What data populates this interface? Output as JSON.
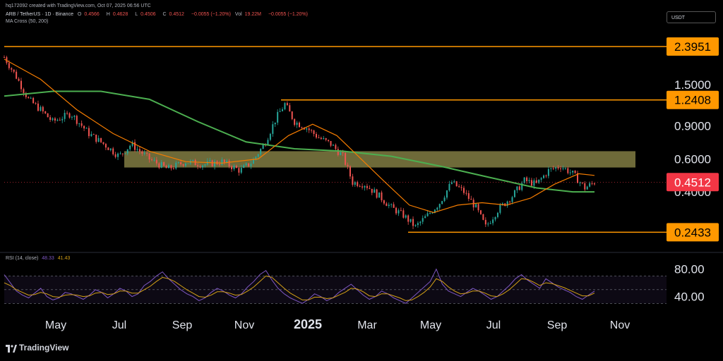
{
  "header": {
    "created": "hq172092 created with TradingView.com, Oct 07, 2025 06:56 UTC",
    "symbol": "ARB / TetherUS · 1D · Binance",
    "o_label": "O",
    "o_value": "0.4566",
    "h_label": "H",
    "h_value": "0.4628",
    "l_label": "L",
    "l_value": "0.4506",
    "c_label": "C",
    "c_value": "0.4512",
    "change": "−0.0055 (−1.20%)",
    "vol_label": "Vol",
    "vol_value": "19.22M",
    "vol_change": "−0.0055 (−1.20%)",
    "ma": "MA Cross (50, 200)"
  },
  "currency_button": "USDT",
  "rsi": {
    "label": "RSI (14, close)",
    "value1": "48.33",
    "value2": "41.43"
  },
  "brand": "TradingView",
  "colors": {
    "up": "#26a69a",
    "down": "#ef5350",
    "ma_fast": "#f57c00",
    "ma_slow": "#4caf50",
    "level": "#ff9800",
    "zone": "#c9c168",
    "rsi": "#7e57c2",
    "rsi_ma": "#d4a017",
    "price_tag": "#f23645"
  },
  "chart_data": [
    {
      "type": "candlestick",
      "title": "ARB / TetherUS · 1D · Binance",
      "y_scale": "log",
      "ylim": [
        0.2,
        3.0
      ],
      "x_ticks": [
        "May",
        "Jul",
        "Sep",
        "Nov",
        "2025",
        "Mar",
        "May",
        "Jul",
        "Sep",
        "Nov"
      ],
      "y_ticks": [
        "1.5000",
        "0.9000",
        "0.6000",
        "0.4000"
      ],
      "levels": [
        {
          "value": "2.3951"
        },
        {
          "value": "1.2408"
        },
        {
          "value": "0.2433"
        }
      ],
      "last_price": "0.4512",
      "zone": {
        "low": 0.54,
        "high": 0.66
      },
      "close_series": [
        {
          "t": 0,
          "v": 2.1
        },
        {
          "t": 10,
          "v": 1.65
        },
        {
          "t": 20,
          "v": 1.25
        },
        {
          "t": 30,
          "v": 1.1
        },
        {
          "t": 40,
          "v": 0.95
        },
        {
          "t": 55,
          "v": 1.05
        },
        {
          "t": 70,
          "v": 0.82
        },
        {
          "t": 85,
          "v": 0.7
        },
        {
          "t": 95,
          "v": 0.62
        },
        {
          "t": 105,
          "v": 0.72
        },
        {
          "t": 120,
          "v": 0.6
        },
        {
          "t": 135,
          "v": 0.53
        },
        {
          "t": 150,
          "v": 0.58
        },
        {
          "t": 165,
          "v": 0.56
        },
        {
          "t": 180,
          "v": 0.58
        },
        {
          "t": 195,
          "v": 0.52
        },
        {
          "t": 205,
          "v": 0.58
        },
        {
          "t": 215,
          "v": 0.72
        },
        {
          "t": 225,
          "v": 1.0
        },
        {
          "t": 232,
          "v": 1.18
        },
        {
          "t": 240,
          "v": 0.95
        },
        {
          "t": 250,
          "v": 0.88
        },
        {
          "t": 260,
          "v": 0.78
        },
        {
          "t": 270,
          "v": 0.72
        },
        {
          "t": 280,
          "v": 0.62
        },
        {
          "t": 288,
          "v": 0.45
        },
        {
          "t": 298,
          "v": 0.44
        },
        {
          "t": 310,
          "v": 0.38
        },
        {
          "t": 320,
          "v": 0.33
        },
        {
          "t": 330,
          "v": 0.3
        },
        {
          "t": 340,
          "v": 0.26
        },
        {
          "t": 350,
          "v": 0.3
        },
        {
          "t": 360,
          "v": 0.35
        },
        {
          "t": 370,
          "v": 0.45
        },
        {
          "t": 380,
          "v": 0.4
        },
        {
          "t": 390,
          "v": 0.33
        },
        {
          "t": 398,
          "v": 0.26
        },
        {
          "t": 408,
          "v": 0.32
        },
        {
          "t": 420,
          "v": 0.38
        },
        {
          "t": 430,
          "v": 0.46
        },
        {
          "t": 440,
          "v": 0.44
        },
        {
          "t": 450,
          "v": 0.52
        },
        {
          "t": 460,
          "v": 0.55
        },
        {
          "t": 470,
          "v": 0.5
        },
        {
          "t": 480,
          "v": 0.42
        },
        {
          "t": 488,
          "v": 0.45
        }
      ],
      "ma50": [
        {
          "t": 0,
          "v": 2.05
        },
        {
          "t": 30,
          "v": 1.6
        },
        {
          "t": 60,
          "v": 1.1
        },
        {
          "t": 90,
          "v": 0.82
        },
        {
          "t": 120,
          "v": 0.66
        },
        {
          "t": 150,
          "v": 0.58
        },
        {
          "t": 180,
          "v": 0.57
        },
        {
          "t": 210,
          "v": 0.6
        },
        {
          "t": 235,
          "v": 0.8
        },
        {
          "t": 255,
          "v": 0.92
        },
        {
          "t": 275,
          "v": 0.8
        },
        {
          "t": 295,
          "v": 0.6
        },
        {
          "t": 315,
          "v": 0.45
        },
        {
          "t": 335,
          "v": 0.34
        },
        {
          "t": 355,
          "v": 0.31
        },
        {
          "t": 375,
          "v": 0.34
        },
        {
          "t": 395,
          "v": 0.35
        },
        {
          "t": 415,
          "v": 0.34
        },
        {
          "t": 435,
          "v": 0.37
        },
        {
          "t": 455,
          "v": 0.44
        },
        {
          "t": 475,
          "v": 0.5
        },
        {
          "t": 488,
          "v": 0.49
        }
      ],
      "ma200": [
        {
          "t": 0,
          "v": 1.3
        },
        {
          "t": 40,
          "v": 1.38
        },
        {
          "t": 80,
          "v": 1.38
        },
        {
          "t": 120,
          "v": 1.25
        },
        {
          "t": 160,
          "v": 0.95
        },
        {
          "t": 200,
          "v": 0.74
        },
        {
          "t": 240,
          "v": 0.68
        },
        {
          "t": 280,
          "v": 0.66
        },
        {
          "t": 320,
          "v": 0.62
        },
        {
          "t": 360,
          "v": 0.55
        },
        {
          "t": 400,
          "v": 0.48
        },
        {
          "t": 440,
          "v": 0.42
        },
        {
          "t": 470,
          "v": 0.4
        },
        {
          "t": 488,
          "v": 0.4
        }
      ]
    },
    {
      "type": "line",
      "title": "RSI (14, close)",
      "ylim": [
        20,
        90
      ],
      "y_ticks": [
        "80.00",
        "40.00"
      ],
      "bands": [
        70,
        50,
        30
      ],
      "series": [
        {
          "values": [
            72,
            60,
            48,
            42,
            38,
            45,
            52,
            40,
            35,
            38,
            46,
            44,
            40,
            36,
            42,
            50,
            46,
            38,
            44,
            52,
            48,
            40,
            44,
            56,
            62,
            70,
            76,
            66,
            58,
            50,
            44,
            40,
            34,
            38,
            46,
            52,
            48,
            42,
            38,
            44,
            54,
            62,
            72,
            78,
            64,
            52,
            44,
            38,
            34,
            30,
            36,
            44,
            40,
            34,
            38,
            46,
            52,
            58,
            50,
            42,
            36,
            40,
            48,
            44,
            38,
            34,
            30,
            38,
            46,
            54,
            62,
            80,
            58,
            48,
            44,
            40,
            46,
            52,
            48,
            42,
            36,
            40,
            48,
            56,
            66,
            72,
            64,
            58,
            52,
            66,
            60,
            54,
            50,
            46,
            40,
            36,
            42,
            48
          ]
        },
        {
          "values": [
            60,
            56,
            50,
            46,
            42,
            43,
            46,
            44,
            40,
            39,
            42,
            43,
            42,
            40,
            41,
            45,
            46,
            43,
            44,
            48,
            48,
            45,
            45,
            50,
            55,
            62,
            68,
            66,
            62,
            56,
            50,
            45,
            40,
            39,
            42,
            47,
            47,
            45,
            42,
            43,
            48,
            54,
            62,
            70,
            68,
            60,
            52,
            45,
            40,
            35,
            35,
            39,
            39,
            37,
            38,
            42,
            46,
            52,
            51,
            47,
            41,
            40,
            44,
            44,
            41,
            38,
            34,
            35,
            40,
            46,
            54,
            66,
            62,
            54,
            48,
            44,
            45,
            48,
            48,
            45,
            41,
            40,
            44,
            50,
            58,
            66,
            65,
            61,
            56,
            60,
            59,
            56,
            53,
            49,
            45,
            41,
            41,
            45
          ]
        }
      ]
    }
  ]
}
